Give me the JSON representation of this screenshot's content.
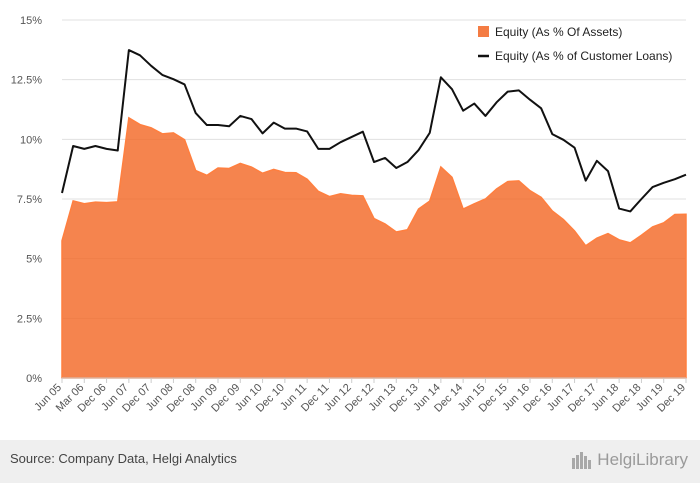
{
  "chart_data": {
    "type": "area",
    "title": "",
    "xlabel": "",
    "ylabel": "",
    "ylim": [
      0,
      15
    ],
    "y_ticks": [
      "0%",
      "2.5%",
      "5%",
      "7.5%",
      "10%",
      "12.5%",
      "15%"
    ],
    "x_tick_labels": [
      "Jun 05",
      "Mar 06",
      "Dec 06",
      "Jun 07",
      "Dec 07",
      "Jun 08",
      "Dec 08",
      "Jun 09",
      "Dec 09",
      "Jun 10",
      "Dec 10",
      "Jun 11",
      "Dec 11",
      "Jun 12",
      "Dec 12",
      "Jun 13",
      "Dec 13",
      "Jun 14",
      "Dec 14",
      "Jun 15",
      "Dec 15",
      "Jun 16",
      "Dec 16",
      "Jun 17",
      "Dec 17",
      "Jun 18",
      "Dec 18",
      "Jun 19",
      "Dec 19"
    ],
    "grid": true,
    "legend_position": "top-right",
    "series": [
      {
        "name": "Equity (As % Of Assets)",
        "type": "area",
        "color": "#f26522",
        "values": [
          5.75,
          7.42,
          7.3,
          7.37,
          7.35,
          7.38,
          10.9,
          10.62,
          10.48,
          10.23,
          10.27,
          9.98,
          8.69,
          8.49,
          8.8,
          8.78,
          8.99,
          8.84,
          8.58,
          8.74,
          8.61,
          8.6,
          8.33,
          7.82,
          7.6,
          7.72,
          7.65,
          7.63,
          6.68,
          6.45,
          6.12,
          6.21,
          7.08,
          7.41,
          8.84,
          8.41,
          7.08,
          7.3,
          7.5,
          7.92,
          8.23,
          8.26,
          7.85,
          7.57,
          7.0,
          6.64,
          6.16,
          5.54,
          5.86,
          6.05,
          5.79,
          5.66,
          5.98,
          6.33,
          6.5,
          6.85,
          6.86
        ]
      },
      {
        "name": "Equity (As % of Customer Loans)",
        "type": "line",
        "color": "#111111",
        "values": [
          7.75,
          9.72,
          9.6,
          9.72,
          9.6,
          9.53,
          13.74,
          13.52,
          13.08,
          12.7,
          12.52,
          12.3,
          11.1,
          10.6,
          10.6,
          10.55,
          10.98,
          10.85,
          10.25,
          10.7,
          10.45,
          10.45,
          10.33,
          9.6,
          9.6,
          9.88,
          10.1,
          10.32,
          9.05,
          9.22,
          8.8,
          9.05,
          9.55,
          10.27,
          12.6,
          12.1,
          11.2,
          11.5,
          10.98,
          11.55,
          12.0,
          12.05,
          11.66,
          11.3,
          10.22,
          9.98,
          9.65,
          8.27,
          9.1,
          8.67,
          7.1,
          6.98,
          7.5,
          8.0,
          8.18,
          8.33,
          8.52
        ]
      }
    ]
  },
  "footer": {
    "source": "Source: Company Data, Helgi Analytics",
    "brand": "HelgiLibrary"
  },
  "colors": {
    "background": "#ffffff",
    "grid": "#e0e0e0",
    "footer_bg": "#efefef"
  }
}
